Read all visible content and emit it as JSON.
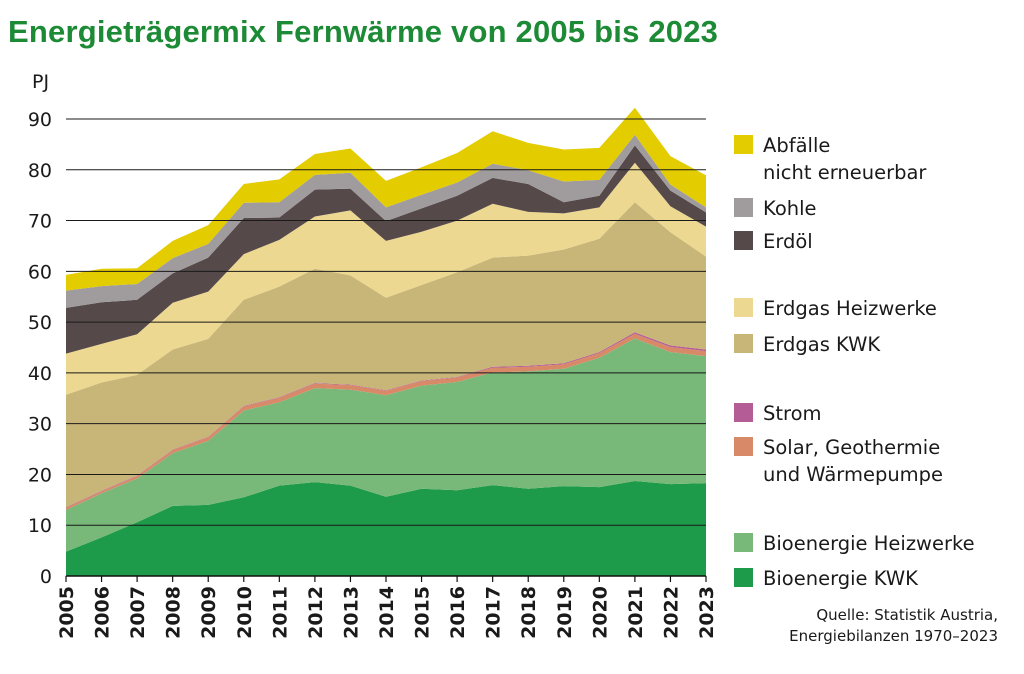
{
  "title": "Energieträgermix Fernwärme von 2005 bis 2023",
  "source": "Quelle: Statistik Austria,\nEnergiebilanzen 1970–2023",
  "chart_data": {
    "type": "area",
    "stacked": true,
    "title": "Energieträgermix Fernwärme von 2005 bis 2023",
    "ylabel": "PJ",
    "xlabel": "",
    "ylim": [
      0,
      90
    ],
    "yticks": [
      0,
      10,
      20,
      30,
      40,
      50,
      60,
      70,
      80,
      90
    ],
    "grid": true,
    "legend_position": "right",
    "x": [
      "2005",
      "2006",
      "2007",
      "2008",
      "2009",
      "2010",
      "2011",
      "2012",
      "2013",
      "2014",
      "2015",
      "2016",
      "2017",
      "2018",
      "2019",
      "2020",
      "2021",
      "2022",
      "2023"
    ],
    "series": [
      {
        "name": "Bioenergie KWK",
        "color": "#1e9b4a",
        "values": [
          4.8,
          7.6,
          10.6,
          13.8,
          14.0,
          15.5,
          17.8,
          18.5,
          17.8,
          15.6,
          17.2,
          16.9,
          17.9,
          17.2,
          17.7,
          17.5,
          18.7,
          18.1,
          18.3
        ]
      },
      {
        "name": "Bioenergie Heizwerke",
        "color": "#78b878",
        "values": [
          8.2,
          8.7,
          8.6,
          10.4,
          12.6,
          17.1,
          16.4,
          18.5,
          18.9,
          20.0,
          20.3,
          21.3,
          22.2,
          23.1,
          23.1,
          25.5,
          28.1,
          26.0,
          25.0
        ]
      },
      {
        "name": "Solar, Geothermie und Wärmepumpe",
        "color": "#d88a68",
        "values": [
          0.4,
          0.4,
          0.5,
          0.6,
          0.7,
          0.8,
          0.9,
          0.9,
          0.9,
          0.9,
          0.9,
          0.9,
          0.9,
          0.9,
          0.9,
          0.9,
          0.9,
          1.0,
          1.0
        ]
      },
      {
        "name": "Strom",
        "color": "#b45c96",
        "values": [
          0.1,
          0.1,
          0.1,
          0.1,
          0.1,
          0.1,
          0.1,
          0.1,
          0.1,
          0.1,
          0.1,
          0.1,
          0.2,
          0.2,
          0.2,
          0.2,
          0.3,
          0.3,
          0.3
        ]
      },
      {
        "name": "Erdgas KWK",
        "color": "#c8b678",
        "values": [
          22.2,
          21.3,
          19.8,
          19.7,
          19.3,
          20.9,
          21.8,
          22.5,
          21.5,
          18.2,
          18.8,
          20.6,
          21.5,
          21.7,
          22.4,
          22.3,
          25.6,
          22.3,
          18.3
        ]
      },
      {
        "name": "Erdgas Heizwerke",
        "color": "#ecd891",
        "values": [
          8.1,
          7.6,
          8.0,
          9.2,
          9.3,
          9.0,
          9.2,
          10.3,
          12.8,
          11.2,
          10.5,
          10.2,
          10.6,
          8.6,
          7.1,
          6.2,
          7.8,
          5.1,
          5.9
        ]
      },
      {
        "name": "Erdöl",
        "color": "#55494a",
        "values": [
          9.0,
          8.2,
          6.8,
          5.8,
          6.7,
          7.1,
          4.4,
          5.3,
          4.3,
          3.9,
          4.6,
          4.9,
          5.1,
          5.5,
          2.2,
          2.3,
          3.4,
          3.1,
          2.8
        ]
      },
      {
        "name": "Kohle",
        "color": "#a09c9e",
        "values": [
          3.4,
          3.2,
          3.1,
          3.0,
          2.7,
          3.0,
          3.0,
          2.9,
          3.1,
          2.7,
          2.7,
          2.6,
          2.8,
          2.7,
          4.1,
          3.1,
          2.1,
          1.2,
          1.0
        ]
      },
      {
        "name": "Abfälle nicht erneuerbar",
        "color": "#e3cc00",
        "values": [
          3.1,
          3.4,
          3.1,
          3.4,
          3.7,
          3.7,
          4.5,
          4.1,
          4.8,
          5.2,
          5.4,
          5.8,
          6.4,
          5.4,
          6.3,
          6.3,
          5.3,
          5.6,
          6.3
        ]
      }
    ]
  },
  "legend": [
    {
      "label": "Abfälle\nnicht erneuerbar",
      "color": "#e3cc00"
    },
    {
      "label": "Kohle",
      "color": "#a09c9e"
    },
    {
      "label": "Erdöl",
      "color": "#55494a"
    },
    {
      "label": "Erdgas Heizwerke",
      "color": "#ecd891"
    },
    {
      "label": "Erdgas KWK",
      "color": "#c8b678"
    },
    {
      "label": "Strom",
      "color": "#b45c96"
    },
    {
      "label": "Solar, Geothermie\nund Wärmepumpe",
      "color": "#d88a68"
    },
    {
      "label": "Bioenergie Heizwerke",
      "color": "#78b878"
    },
    {
      "label": "Bioenergie KWK",
      "color": "#1e9b4a"
    }
  ]
}
